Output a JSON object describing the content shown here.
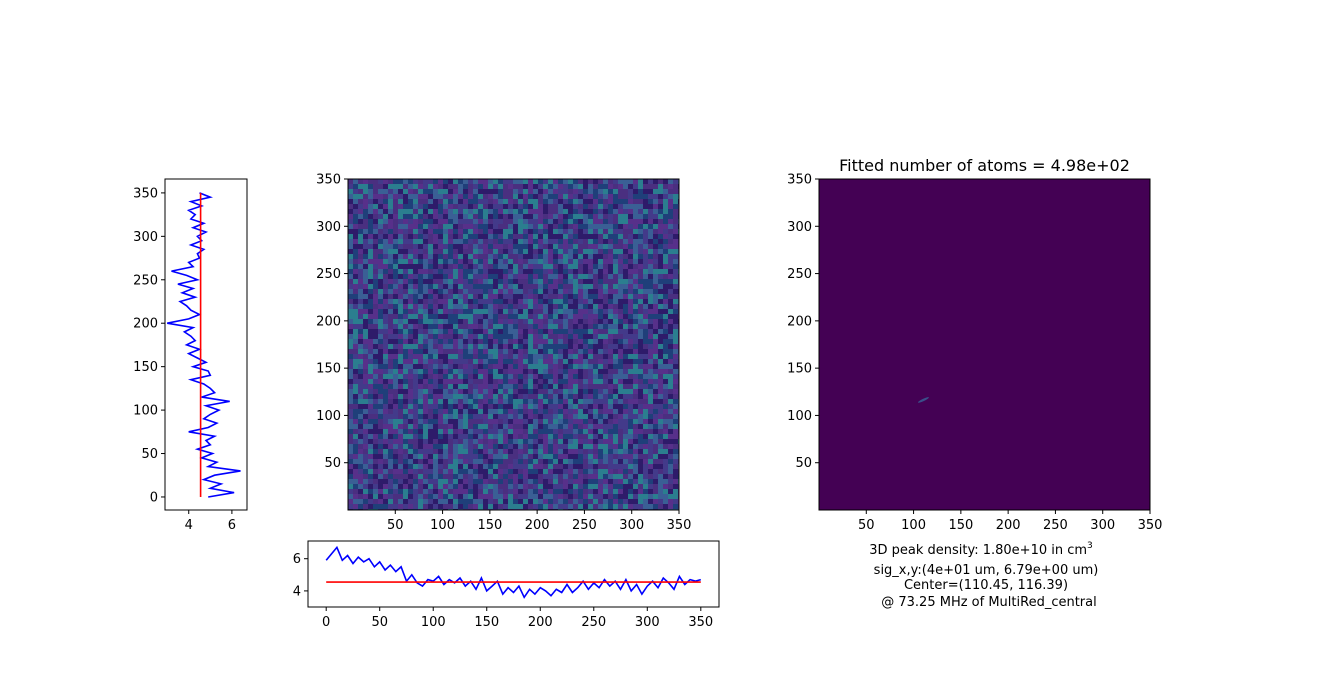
{
  "chart_data": [
    {
      "id": "left-profile",
      "type": "line",
      "orientation": "vertical",
      "xticks": [
        "4",
        "6"
      ],
      "yticks": [
        "0",
        "50",
        "100",
        "150",
        "200",
        "250",
        "300",
        "350"
      ],
      "xlim": [
        2.9,
        6.7
      ],
      "ylim": [
        -15,
        366
      ],
      "fit_value": 4.55,
      "series": [
        {
          "color": "#0000ff",
          "y": [
            0,
            5,
            10,
            15,
            20,
            25,
            30,
            35,
            40,
            45,
            50,
            55,
            60,
            65,
            70,
            75,
            80,
            85,
            90,
            95,
            100,
            105,
            110,
            115,
            120,
            125,
            130,
            135,
            140,
            145,
            150,
            155,
            160,
            165,
            170,
            175,
            180,
            185,
            190,
            195,
            200,
            205,
            210,
            215,
            220,
            225,
            230,
            235,
            240,
            245,
            250,
            255,
            260,
            265,
            270,
            275,
            280,
            285,
            290,
            295,
            300,
            305,
            310,
            315,
            320,
            325,
            330,
            335,
            340,
            345,
            350
          ],
          "x": [
            4.9,
            6.1,
            5.0,
            5.5,
            4.7,
            5.2,
            6.4,
            4.9,
            5.3,
            4.6,
            5.1,
            4.4,
            5.0,
            4.8,
            5.2,
            4.0,
            4.9,
            5.3,
            4.7,
            5.0,
            5.4,
            4.8,
            5.9,
            4.6,
            5.2,
            5.0,
            4.7,
            4.1,
            5.0,
            4.9,
            4.2,
            4.8,
            4.4,
            4.0,
            4.5,
            3.9,
            4.3,
            4.1,
            3.8,
            4.2,
            3.0,
            4.0,
            4.5,
            4.1,
            3.9,
            3.6,
            4.3,
            3.7,
            4.2,
            3.5,
            4.4,
            3.9,
            3.2,
            4.2,
            4.0,
            4.5,
            4.4,
            4.7,
            4.1,
            4.6,
            4.4,
            4.8,
            4.2,
            4.7,
            4.1,
            4.3,
            4.0,
            4.6,
            4.1,
            5.0,
            4.5
          ]
        }
      ]
    },
    {
      "id": "raw-image",
      "type": "heatmap",
      "xticks": [
        "50",
        "100",
        "150",
        "200",
        "250",
        "300",
        "350"
      ],
      "yticks": [
        "50",
        "100",
        "150",
        "200",
        "250",
        "300",
        "350"
      ],
      "xlim": [
        0,
        350
      ],
      "ylim": [
        0,
        350
      ],
      "colormap": "viridis",
      "base_color": "#3b2a75",
      "noise_colors": [
        "#2e1b6a",
        "#433a8a",
        "#3a5f95",
        "#2b7e8f",
        "#4a2f80",
        "#1f3f7a",
        "#57308a"
      ]
    },
    {
      "id": "bottom-profile",
      "type": "line",
      "xticks": [
        "0",
        "50",
        "100",
        "150",
        "200",
        "250",
        "300",
        "350"
      ],
      "yticks": [
        "4",
        "6"
      ],
      "xlim": [
        -17,
        367
      ],
      "ylim": [
        3.0,
        7.1
      ],
      "fit_value": 4.55,
      "series": [
        {
          "color": "#0000ff",
          "x": [
            0,
            5,
            10,
            15,
            20,
            25,
            30,
            35,
            40,
            45,
            50,
            55,
            60,
            65,
            70,
            75,
            80,
            85,
            90,
            95,
            100,
            105,
            110,
            115,
            120,
            125,
            130,
            135,
            140,
            145,
            150,
            155,
            160,
            165,
            170,
            175,
            180,
            185,
            190,
            195,
            200,
            205,
            210,
            215,
            220,
            225,
            230,
            235,
            240,
            245,
            250,
            255,
            260,
            265,
            270,
            275,
            280,
            285,
            290,
            295,
            300,
            305,
            310,
            315,
            320,
            325,
            330,
            335,
            340,
            345,
            350
          ],
          "y": [
            5.9,
            6.3,
            6.7,
            5.9,
            6.2,
            5.7,
            6.1,
            5.8,
            6.0,
            5.5,
            5.8,
            5.3,
            5.6,
            5.2,
            5.5,
            4.6,
            5.0,
            4.5,
            4.3,
            4.7,
            4.6,
            4.9,
            4.4,
            4.7,
            4.5,
            4.8,
            4.3,
            4.6,
            4.1,
            4.8,
            4.0,
            4.3,
            4.6,
            3.8,
            4.2,
            3.9,
            4.3,
            3.6,
            4.1,
            3.8,
            4.2,
            4.0,
            3.7,
            4.1,
            3.9,
            4.4,
            3.9,
            4.2,
            4.6,
            4.1,
            4.5,
            4.2,
            4.7,
            4.3,
            4.6,
            4.1,
            4.7,
            4.0,
            4.4,
            3.8,
            4.3,
            4.6,
            4.2,
            4.8,
            4.5,
            4.1,
            4.9,
            4.4,
            4.7,
            4.6,
            4.7
          ]
        }
      ]
    },
    {
      "id": "fitted-image",
      "type": "heatmap",
      "title": "Fitted number of atoms = 4.98e+02",
      "xticks": [
        "50",
        "100",
        "150",
        "200",
        "250",
        "300",
        "350"
      ],
      "yticks": [
        "50",
        "100",
        "150",
        "200",
        "250",
        "300",
        "350"
      ],
      "xlim": [
        0,
        350
      ],
      "ylim": [
        0,
        350
      ],
      "colormap": "viridis",
      "base_color": "#440154",
      "spot_center": [
        110.45,
        116.39
      ],
      "spot_color": "#3a4f8a"
    }
  ],
  "annotations": {
    "density_prefix": "3D peak density: 1.80e+10 in cm",
    "density_exponent": "3",
    "sigma": "sig_x,y:(4e+01 um, 6.79e+00 um)",
    "center": "Center=(110.45, 116.39)",
    "frequency": "@ 73.25 MHz of MultiRed_central"
  },
  "colors": {
    "profile_line": "#0000ff",
    "fit_line": "#ff0000"
  }
}
